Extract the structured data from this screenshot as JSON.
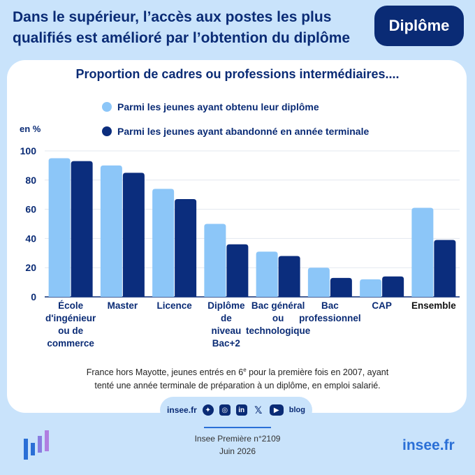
{
  "header": {
    "headline_line1": "Dans le supérieur, l’accès aux postes les plus",
    "headline_line2": "qualifiés est amélioré par l’obtention du diplôme",
    "badge": "Diplôme"
  },
  "colors": {
    "light_series": "#8cc6f8",
    "dark_series": "#0b2d7d",
    "accent": "#2a6fd6",
    "text": "#0a2b75"
  },
  "chart_data": {
    "type": "bar",
    "title": "Proportion de cadres ou professions intermédiaires....",
    "ylabel": "en %",
    "ylim": [
      0,
      100
    ],
    "yticks": [
      "0",
      "20",
      "40",
      "60",
      "80",
      "100"
    ],
    "grid": true,
    "legend_position": "top",
    "categories": [
      [
        "École",
        "d'ingénieur",
        "ou de",
        "commerce"
      ],
      [
        "Master"
      ],
      [
        "Licence"
      ],
      [
        "Diplôme",
        "de",
        "niveau",
        "Bac+2"
      ],
      [
        "Bac général",
        "ou",
        "technologique"
      ],
      [
        "Bac",
        "professionnel"
      ],
      [
        "CAP"
      ],
      [
        "Ensemble"
      ]
    ],
    "series": [
      {
        "name": "Parmi les jeunes ayant obtenu leur diplôme",
        "values": [
          95,
          90,
          74,
          50,
          31,
          20,
          12,
          61
        ]
      },
      {
        "name": "Parmi les jeunes ayant abandonné en année terminale",
        "values": [
          93,
          85,
          67,
          36,
          28,
          13,
          14,
          39
        ]
      }
    ]
  },
  "note": {
    "line1": "France hors Mayotte, jeunes entrés en 6e pour la première fois en 2007, ayant",
    "line2": "tenté une année terminale de préparation à un diplôme, en emploi salarié."
  },
  "footer": {
    "social_site": "insee.fr",
    "social_icons": [
      "bluesky-icon",
      "instagram-icon",
      "linkedin-icon",
      "x-icon",
      "youtube-icon",
      "blog-icon"
    ],
    "blog_label": "blog",
    "publication": "Insee Première n°2109",
    "date": "Juin 2026",
    "site": "insee.fr"
  }
}
